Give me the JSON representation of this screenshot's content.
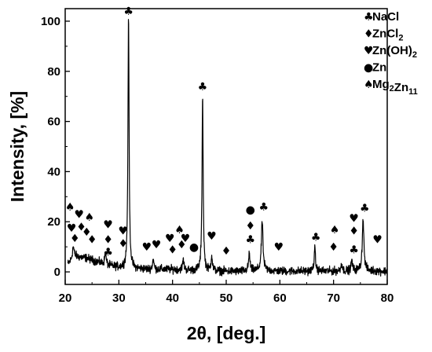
{
  "chart_data": {
    "type": "line",
    "xlabel": "2θ, [deg.]",
    "ylabel": "Intensity, [%]",
    "xlim": [
      20,
      80
    ],
    "ylim": [
      -5,
      105
    ],
    "xticks": [
      20,
      30,
      40,
      50,
      60,
      70,
      80
    ],
    "yticks": [
      0,
      20,
      40,
      60,
      80,
      100
    ],
    "grid": false,
    "legend_position": "top-right",
    "color": "#000000",
    "legend": [
      {
        "symbol": "♣",
        "name": "club",
        "text": "NaCl",
        "parts": [
          [
            "NaCl",
            false
          ]
        ]
      },
      {
        "symbol": "♦",
        "name": "diamond",
        "text": "ZnCl2",
        "parts": [
          [
            "ZnCl",
            false
          ],
          [
            "2",
            true
          ]
        ]
      },
      {
        "symbol": "♥",
        "name": "heart",
        "text": "Zn(OH)2",
        "parts": [
          [
            "Zn(OH)",
            false
          ],
          [
            "2",
            true
          ]
        ]
      },
      {
        "symbol": "●",
        "name": "circle",
        "text": "Zn",
        "parts": [
          [
            "Zn",
            false
          ]
        ]
      },
      {
        "symbol": "♠",
        "name": "spade",
        "text": "Mg2Zn11",
        "parts": [
          [
            "Mg",
            false
          ],
          [
            "2",
            true
          ],
          [
            "Zn",
            false
          ],
          [
            "11",
            true
          ]
        ]
      }
    ],
    "peaks": [
      {
        "x": 31.8,
        "y": 100,
        "width": 0.25
      },
      {
        "x": 45.6,
        "y": 70,
        "width": 0.25
      },
      {
        "x": 56.7,
        "y": 20,
        "width": 0.35
      },
      {
        "x": 75.5,
        "y": 21,
        "width": 0.35
      },
      {
        "x": 66.5,
        "y": 9,
        "width": 0.3
      },
      {
        "x": 54.3,
        "y": 7,
        "width": 0.3
      },
      {
        "x": 47.3,
        "y": 6,
        "width": 0.3
      },
      {
        "x": 27.5,
        "y": 5,
        "width": 0.3
      },
      {
        "x": 21.5,
        "y": 5,
        "width": 0.4
      },
      {
        "x": 36.4,
        "y": 4,
        "width": 0.3
      },
      {
        "x": 42.0,
        "y": 4,
        "width": 0.3
      },
      {
        "x": 71.5,
        "y": 3,
        "width": 0.3
      },
      {
        "x": 73.4,
        "y": 4,
        "width": 0.3
      }
    ],
    "baseline": [
      {
        "x": 20.5,
        "y": 3.0
      },
      {
        "x": 22.0,
        "y": 6.0
      },
      {
        "x": 24.0,
        "y": 5.5
      },
      {
        "x": 26.0,
        "y": 4.0
      },
      {
        "x": 28.0,
        "y": 2.5
      },
      {
        "x": 30.0,
        "y": 1.8
      },
      {
        "x": 33.0,
        "y": 1.2
      },
      {
        "x": 36.0,
        "y": 1.0
      },
      {
        "x": 40.0,
        "y": 1.0
      },
      {
        "x": 44.0,
        "y": 0.5
      },
      {
        "x": 48.0,
        "y": 0.3
      },
      {
        "x": 52.0,
        "y": 0.2
      },
      {
        "x": 56.0,
        "y": 0.5
      },
      {
        "x": 60.0,
        "y": 0.3
      },
      {
        "x": 65.0,
        "y": 0.3
      },
      {
        "x": 70.0,
        "y": 0.3
      },
      {
        "x": 75.0,
        "y": 0.5
      },
      {
        "x": 80.0,
        "y": 0.2
      }
    ],
    "noise_amplitude": 1.6,
    "markers": [
      {
        "symbol": "♣",
        "name": "club",
        "x": 31.8,
        "y": 104
      },
      {
        "symbol": "♣",
        "name": "club",
        "x": 45.6,
        "y": 74
      },
      {
        "symbol": "♣",
        "name": "club",
        "x": 57.0,
        "y": 26
      },
      {
        "symbol": "♣",
        "name": "club",
        "x": 75.8,
        "y": 25.5
      },
      {
        "symbol": "♣",
        "name": "club",
        "x": 66.7,
        "y": 14
      },
      {
        "symbol": "♣",
        "name": "club",
        "x": 54.5,
        "y": 13
      },
      {
        "symbol": "♣",
        "name": "club",
        "x": 28.0,
        "y": 8
      },
      {
        "symbol": "♣",
        "name": "club",
        "x": 73.8,
        "y": 9
      },
      {
        "symbol": "♠",
        "name": "spade",
        "x": 20.9,
        "y": 26
      },
      {
        "symbol": "♠",
        "name": "spade",
        "x": 24.5,
        "y": 22
      },
      {
        "symbol": "♠",
        "name": "spade",
        "x": 41.3,
        "y": 17
      },
      {
        "symbol": "♠",
        "name": "spade",
        "x": 70.2,
        "y": 17
      },
      {
        "symbol": "♥",
        "name": "heart",
        "x": 22.6,
        "y": 23
      },
      {
        "symbol": "♥",
        "name": "heart",
        "x": 21.2,
        "y": 17.5
      },
      {
        "symbol": "♥",
        "name": "heart",
        "x": 28.0,
        "y": 19
      },
      {
        "symbol": "♥",
        "name": "heart",
        "x": 30.8,
        "y": 16.5
      },
      {
        "symbol": "♥",
        "name": "heart",
        "x": 39.5,
        "y": 13.5
      },
      {
        "symbol": "♥",
        "name": "heart",
        "x": 42.4,
        "y": 13.5
      },
      {
        "symbol": "♥",
        "name": "heart",
        "x": 47.3,
        "y": 14.5
      },
      {
        "symbol": "♥",
        "name": "heart",
        "x": 37.0,
        "y": 11
      },
      {
        "symbol": "♥",
        "name": "heart",
        "x": 35.2,
        "y": 10
      },
      {
        "symbol": "♥",
        "name": "heart",
        "x": 59.8,
        "y": 10
      },
      {
        "symbol": "♥",
        "name": "heart",
        "x": 73.8,
        "y": 21.5
      },
      {
        "symbol": "♥",
        "name": "heart",
        "x": 78.2,
        "y": 13
      },
      {
        "symbol": "♦",
        "name": "diamond",
        "x": 21.8,
        "y": 13.5
      },
      {
        "symbol": "♦",
        "name": "diamond",
        "x": 23.0,
        "y": 18
      },
      {
        "symbol": "♦",
        "name": "diamond",
        "x": 24.0,
        "y": 16
      },
      {
        "symbol": "♦",
        "name": "diamond",
        "x": 25.0,
        "y": 13
      },
      {
        "symbol": "♦",
        "name": "diamond",
        "x": 28.0,
        "y": 13
      },
      {
        "symbol": "♦",
        "name": "diamond",
        "x": 30.8,
        "y": 11.5
      },
      {
        "symbol": "♦",
        "name": "diamond",
        "x": 40.0,
        "y": 9
      },
      {
        "symbol": "♦",
        "name": "diamond",
        "x": 41.7,
        "y": 11
      },
      {
        "symbol": "♦",
        "name": "diamond",
        "x": 50.0,
        "y": 8.5
      },
      {
        "symbol": "♦",
        "name": "diamond",
        "x": 54.5,
        "y": 18.5
      },
      {
        "symbol": "♦",
        "name": "diamond",
        "x": 70.0,
        "y": 10
      },
      {
        "symbol": "♦",
        "name": "diamond",
        "x": 73.8,
        "y": 16.5
      },
      {
        "symbol": "●",
        "name": "circle",
        "x": 44.0,
        "y": 10
      },
      {
        "symbol": "●",
        "name": "circle",
        "x": 54.5,
        "y": 25
      }
    ]
  }
}
